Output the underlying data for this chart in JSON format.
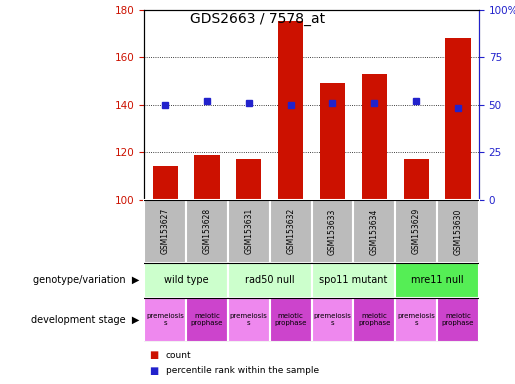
{
  "title": "GDS2663 / 7578_at",
  "samples": [
    "GSM153627",
    "GSM153628",
    "GSM153631",
    "GSM153632",
    "GSM153633",
    "GSM153634",
    "GSM153629",
    "GSM153630"
  ],
  "bar_values": [
    114,
    119,
    117,
    175,
    149,
    153,
    117,
    168
  ],
  "percentile_values": [
    50,
    52,
    51,
    50,
    51,
    51,
    52,
    48
  ],
  "ylim_left": [
    100,
    180
  ],
  "ylim_right": [
    0,
    100
  ],
  "yticks_left": [
    100,
    120,
    140,
    160,
    180
  ],
  "yticks_right": [
    0,
    25,
    50,
    75,
    100
  ],
  "yticklabels_right": [
    "0",
    "25",
    "50",
    "75",
    "100%"
  ],
  "bar_color": "#cc1100",
  "percentile_color": "#2222cc",
  "grid_color": "black",
  "background_color": "#ffffff",
  "left_tick_color": "#cc1100",
  "right_tick_color": "#2222cc",
  "genotype_groups": [
    {
      "label": "wild type",
      "start": 0,
      "end": 2,
      "color": "#ccffcc"
    },
    {
      "label": "rad50 null",
      "start": 2,
      "end": 4,
      "color": "#ccffcc"
    },
    {
      "label": "spo11 mutant",
      "start": 4,
      "end": 6,
      "color": "#ccffcc"
    },
    {
      "label": "mre11 null",
      "start": 6,
      "end": 8,
      "color": "#55ee55"
    }
  ],
  "dev_stage_groups": [
    {
      "label": "premeiosis\ns",
      "start": 0,
      "end": 1,
      "color": "#ee88ee"
    },
    {
      "label": "meiotic\nprophase",
      "start": 1,
      "end": 2,
      "color": "#cc44cc"
    },
    {
      "label": "premeiosis\ns",
      "start": 2,
      "end": 3,
      "color": "#ee88ee"
    },
    {
      "label": "meiotic\nprophase",
      "start": 3,
      "end": 4,
      "color": "#cc44cc"
    },
    {
      "label": "premeiosis\ns",
      "start": 4,
      "end": 5,
      "color": "#ee88ee"
    },
    {
      "label": "meiotic\nprophase",
      "start": 5,
      "end": 6,
      "color": "#cc44cc"
    },
    {
      "label": "premeiosis\ns",
      "start": 6,
      "end": 7,
      "color": "#ee88ee"
    },
    {
      "label": "meiotic\nprophase",
      "start": 7,
      "end": 8,
      "color": "#cc44cc"
    }
  ],
  "legend_count_color": "#cc1100",
  "legend_percentile_color": "#2222cc",
  "xlabel_genotype": "genotype/variation",
  "xlabel_devstage": "development stage",
  "sample_label_bg": "#bbbbbb",
  "sample_label_border": "#888888"
}
